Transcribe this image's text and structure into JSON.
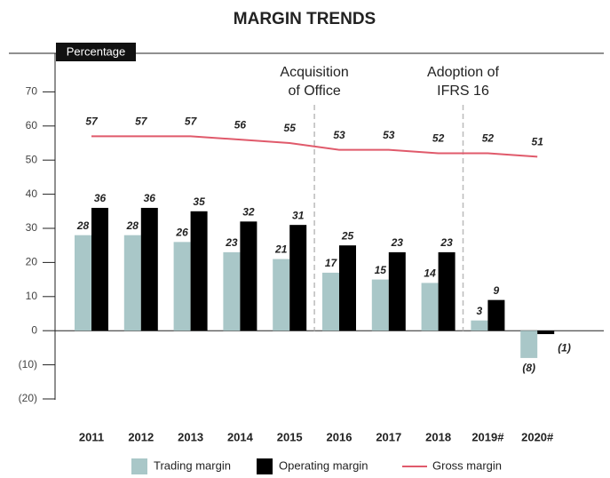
{
  "chart_data": {
    "type": "bar",
    "title": "MARGIN TRENDS",
    "y_axis_label": "Percentage",
    "categories": [
      "2011",
      "2012",
      "2013",
      "2014",
      "2015",
      "2016",
      "2017",
      "2018",
      "2019#",
      "2020#"
    ],
    "series": [
      {
        "name": "Trading margin",
        "color": "#a9c7c8",
        "values": [
          28,
          28,
          26,
          23,
          21,
          17,
          15,
          14,
          3,
          -8
        ],
        "value_labels": [
          "28",
          "28",
          "26",
          "23",
          "21",
          "17",
          "15",
          "14",
          "3",
          "(8)"
        ]
      },
      {
        "name": "Operating margin",
        "color": "#000000",
        "values": [
          36,
          36,
          35,
          32,
          31,
          25,
          23,
          23,
          9,
          -1
        ],
        "value_labels": [
          "36",
          "36",
          "35",
          "32",
          "31",
          "25",
          "23",
          "23",
          "9",
          "(1)"
        ]
      },
      {
        "name": "Gross margin",
        "type": "line",
        "color": "#e05a6b",
        "values": [
          57,
          57,
          57,
          56,
          55,
          53,
          53,
          52,
          52,
          51
        ]
      }
    ],
    "annotations": [
      {
        "lines": [
          "Acquisition",
          "of Office"
        ]
      },
      {
        "lines": [
          "Adoption of",
          "IFRS 16"
        ]
      }
    ],
    "ylim": [
      -20,
      80
    ],
    "yticks": [
      {
        "value": -20,
        "label": "(20)"
      },
      {
        "value": -10,
        "label": "(10)"
      },
      0,
      10,
      20,
      30,
      40,
      50,
      60,
      70
    ]
  }
}
